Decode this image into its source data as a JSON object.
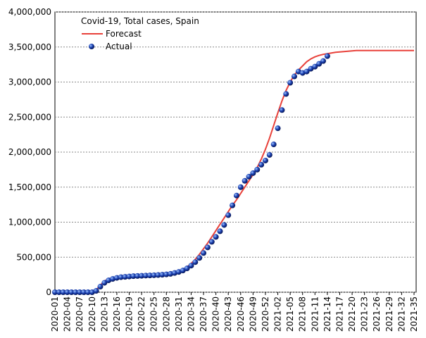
{
  "chart_data": {
    "type": "line",
    "title": "Covid-19, Total cases, Spain",
    "categories": [
      "2020-01",
      null,
      null,
      "2020-04",
      null,
      null,
      "2020-07",
      null,
      null,
      "2020-10",
      null,
      null,
      "2020-13",
      null,
      null,
      "2020-16",
      null,
      null,
      "2020-19",
      null,
      null,
      "2020-22",
      null,
      null,
      "2020-25",
      null,
      null,
      "2020-28",
      null,
      null,
      "2020-31",
      null,
      null,
      "2020-34",
      null,
      null,
      "2020-37",
      null,
      null,
      "2020-40",
      null,
      null,
      "2020-43",
      null,
      null,
      "2020-46",
      null,
      null,
      "2020-49",
      null,
      null,
      "2020-52",
      null,
      null,
      "2021-02",
      null,
      null,
      "2021-05",
      null,
      null,
      "2021-08",
      null,
      null,
      "2021-11",
      null,
      null,
      "2021-14",
      null,
      null,
      "2021-17",
      null,
      null,
      "2021-20",
      null,
      null,
      "2021-23",
      null,
      null,
      "2021-26",
      null,
      null,
      "2021-29",
      null,
      null,
      "2021-32",
      null,
      null,
      "2021-35"
    ],
    "series": [
      {
        "name": "Forecast",
        "type": "line",
        "color": "#e8413a",
        "values": [
          0,
          0,
          0,
          0,
          0,
          0,
          0,
          0,
          0,
          0,
          30000,
          100000,
          160000,
          190000,
          205000,
          212000,
          218000,
          222000,
          225000,
          228000,
          231000,
          234000,
          237000,
          240000,
          243000,
          247000,
          252000,
          258000,
          266000,
          277000,
          290000,
          320000,
          360000,
          410000,
          470000,
          540000,
          620000,
          700000,
          790000,
          880000,
          970000,
          1060000,
          1150000,
          1240000,
          1320000,
          1410000,
          1500000,
          1590000,
          1680000,
          1780000,
          1900000,
          2040000,
          2200000,
          2380000,
          2560000,
          2730000,
          2880000,
          3000000,
          3100000,
          3170000,
          3230000,
          3290000,
          3330000,
          3360000,
          3380000,
          3395000,
          3405000,
          3415000,
          3425000,
          3430000,
          3435000,
          3440000,
          3445000,
          3450000,
          3450000,
          3450000,
          3450000,
          3450000,
          3450000,
          3450000,
          3450000,
          3450000,
          3450000,
          3450000,
          3450000,
          3450000,
          3450000,
          3450000
        ]
      },
      {
        "name": "Actual",
        "type": "scatter",
        "color": "#1a3fb0",
        "values": [
          0,
          0,
          0,
          0,
          0,
          0,
          0,
          0,
          0,
          0,
          20000,
          80000,
          135000,
          170000,
          190000,
          205000,
          215000,
          220000,
          225000,
          230000,
          232000,
          235000,
          238000,
          240000,
          243000,
          246000,
          250000,
          255000,
          262000,
          275000,
          290000,
          310000,
          340000,
          380000,
          430000,
          490000,
          560000,
          640000,
          720000,
          790000,
          870000,
          960000,
          1100000,
          1240000,
          1380000,
          1500000,
          1590000,
          1650000,
          1700000,
          1750000,
          1820000,
          1880000,
          1960000,
          2110000,
          2340000,
          2600000,
          2830000,
          2990000,
          3080000,
          3150000,
          3130000,
          3150000,
          3190000,
          3220000,
          3260000,
          3300000,
          3370000,
          null,
          null,
          null,
          null,
          null,
          null,
          null,
          null,
          null,
          null,
          null,
          null,
          null,
          null,
          null,
          null,
          null,
          null,
          null,
          null,
          null
        ]
      }
    ],
    "ylim": [
      0,
      4000000
    ],
    "yticks": [
      0,
      {
        "value": 500000,
        "label": "500,000"
      },
      {
        "value": 1000000,
        "label": "1,000,000"
      },
      {
        "value": 1500000,
        "label": "1,500,000"
      },
      {
        "value": 2000000,
        "label": "2,000,000"
      },
      {
        "value": 2500000,
        "label": "2,500,000"
      },
      {
        "value": 3000000,
        "label": "3,000,000"
      },
      {
        "value": 3500000,
        "label": "3,500,000"
      },
      {
        "value": 4000000,
        "label": "4,000,000"
      }
    ],
    "grid": true
  }
}
